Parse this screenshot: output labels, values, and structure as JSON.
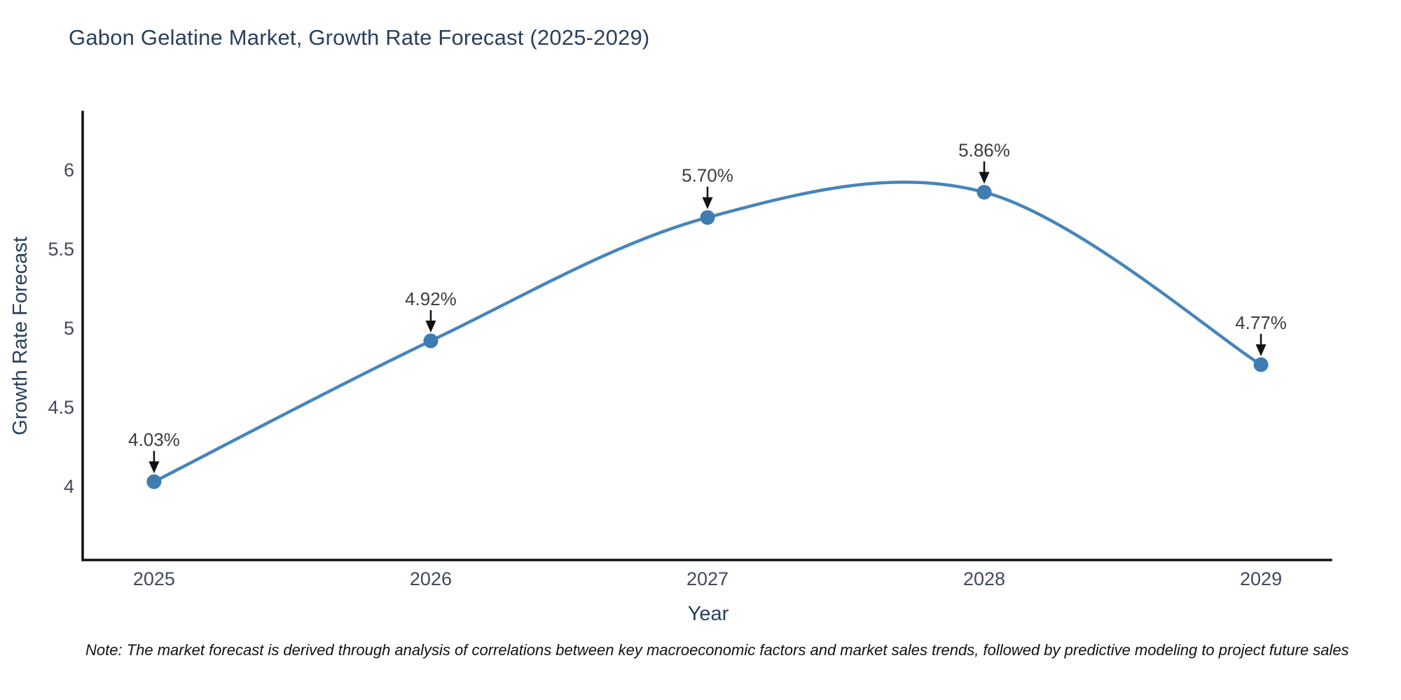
{
  "title": "Gabon Gelatine Market, Growth Rate Forecast (2025-2029)",
  "note": "Note: The market forecast is derived through analysis of correlations between key macroeconomic factors and market sales trends, followed by predictive modeling to project future sales",
  "chart_data": {
    "type": "line",
    "title": "Gabon Gelatine Market, Growth Rate Forecast (2025-2029)",
    "x": [
      2025,
      2026,
      2027,
      2028,
      2029
    ],
    "x_tick_labels": [
      "2025",
      "2026",
      "2027",
      "2028",
      "2029"
    ],
    "series": [
      {
        "name": "Growth Rate Forecast",
        "values": [
          4.03,
          4.92,
          5.7,
          5.86,
          4.77
        ]
      }
    ],
    "point_labels": [
      "4.03%",
      "4.92%",
      "5.70%",
      "5.86%",
      "4.77%"
    ],
    "xlabel": "Year",
    "ylabel": "Growth Rate Forecast",
    "yticks": [
      4,
      4.5,
      5,
      5.5,
      6
    ],
    "ytick_labels": [
      "4",
      "4.5",
      "5",
      "5.5",
      "6"
    ],
    "xlim": [
      2024.742,
      2029.253
    ],
    "ylim": [
      3.535,
      6.367
    ],
    "line_shape": "spline",
    "grid": false,
    "legend": "none",
    "annotations_have_arrows": true,
    "colors": {
      "line": "#4685bb",
      "marker": "#3f7cb2",
      "axis": "#111111",
      "tick_text": "#42495e",
      "title_text": "#2a3f5f",
      "annotation_text": "#3d3d3d",
      "arrow": "#111111"
    }
  }
}
